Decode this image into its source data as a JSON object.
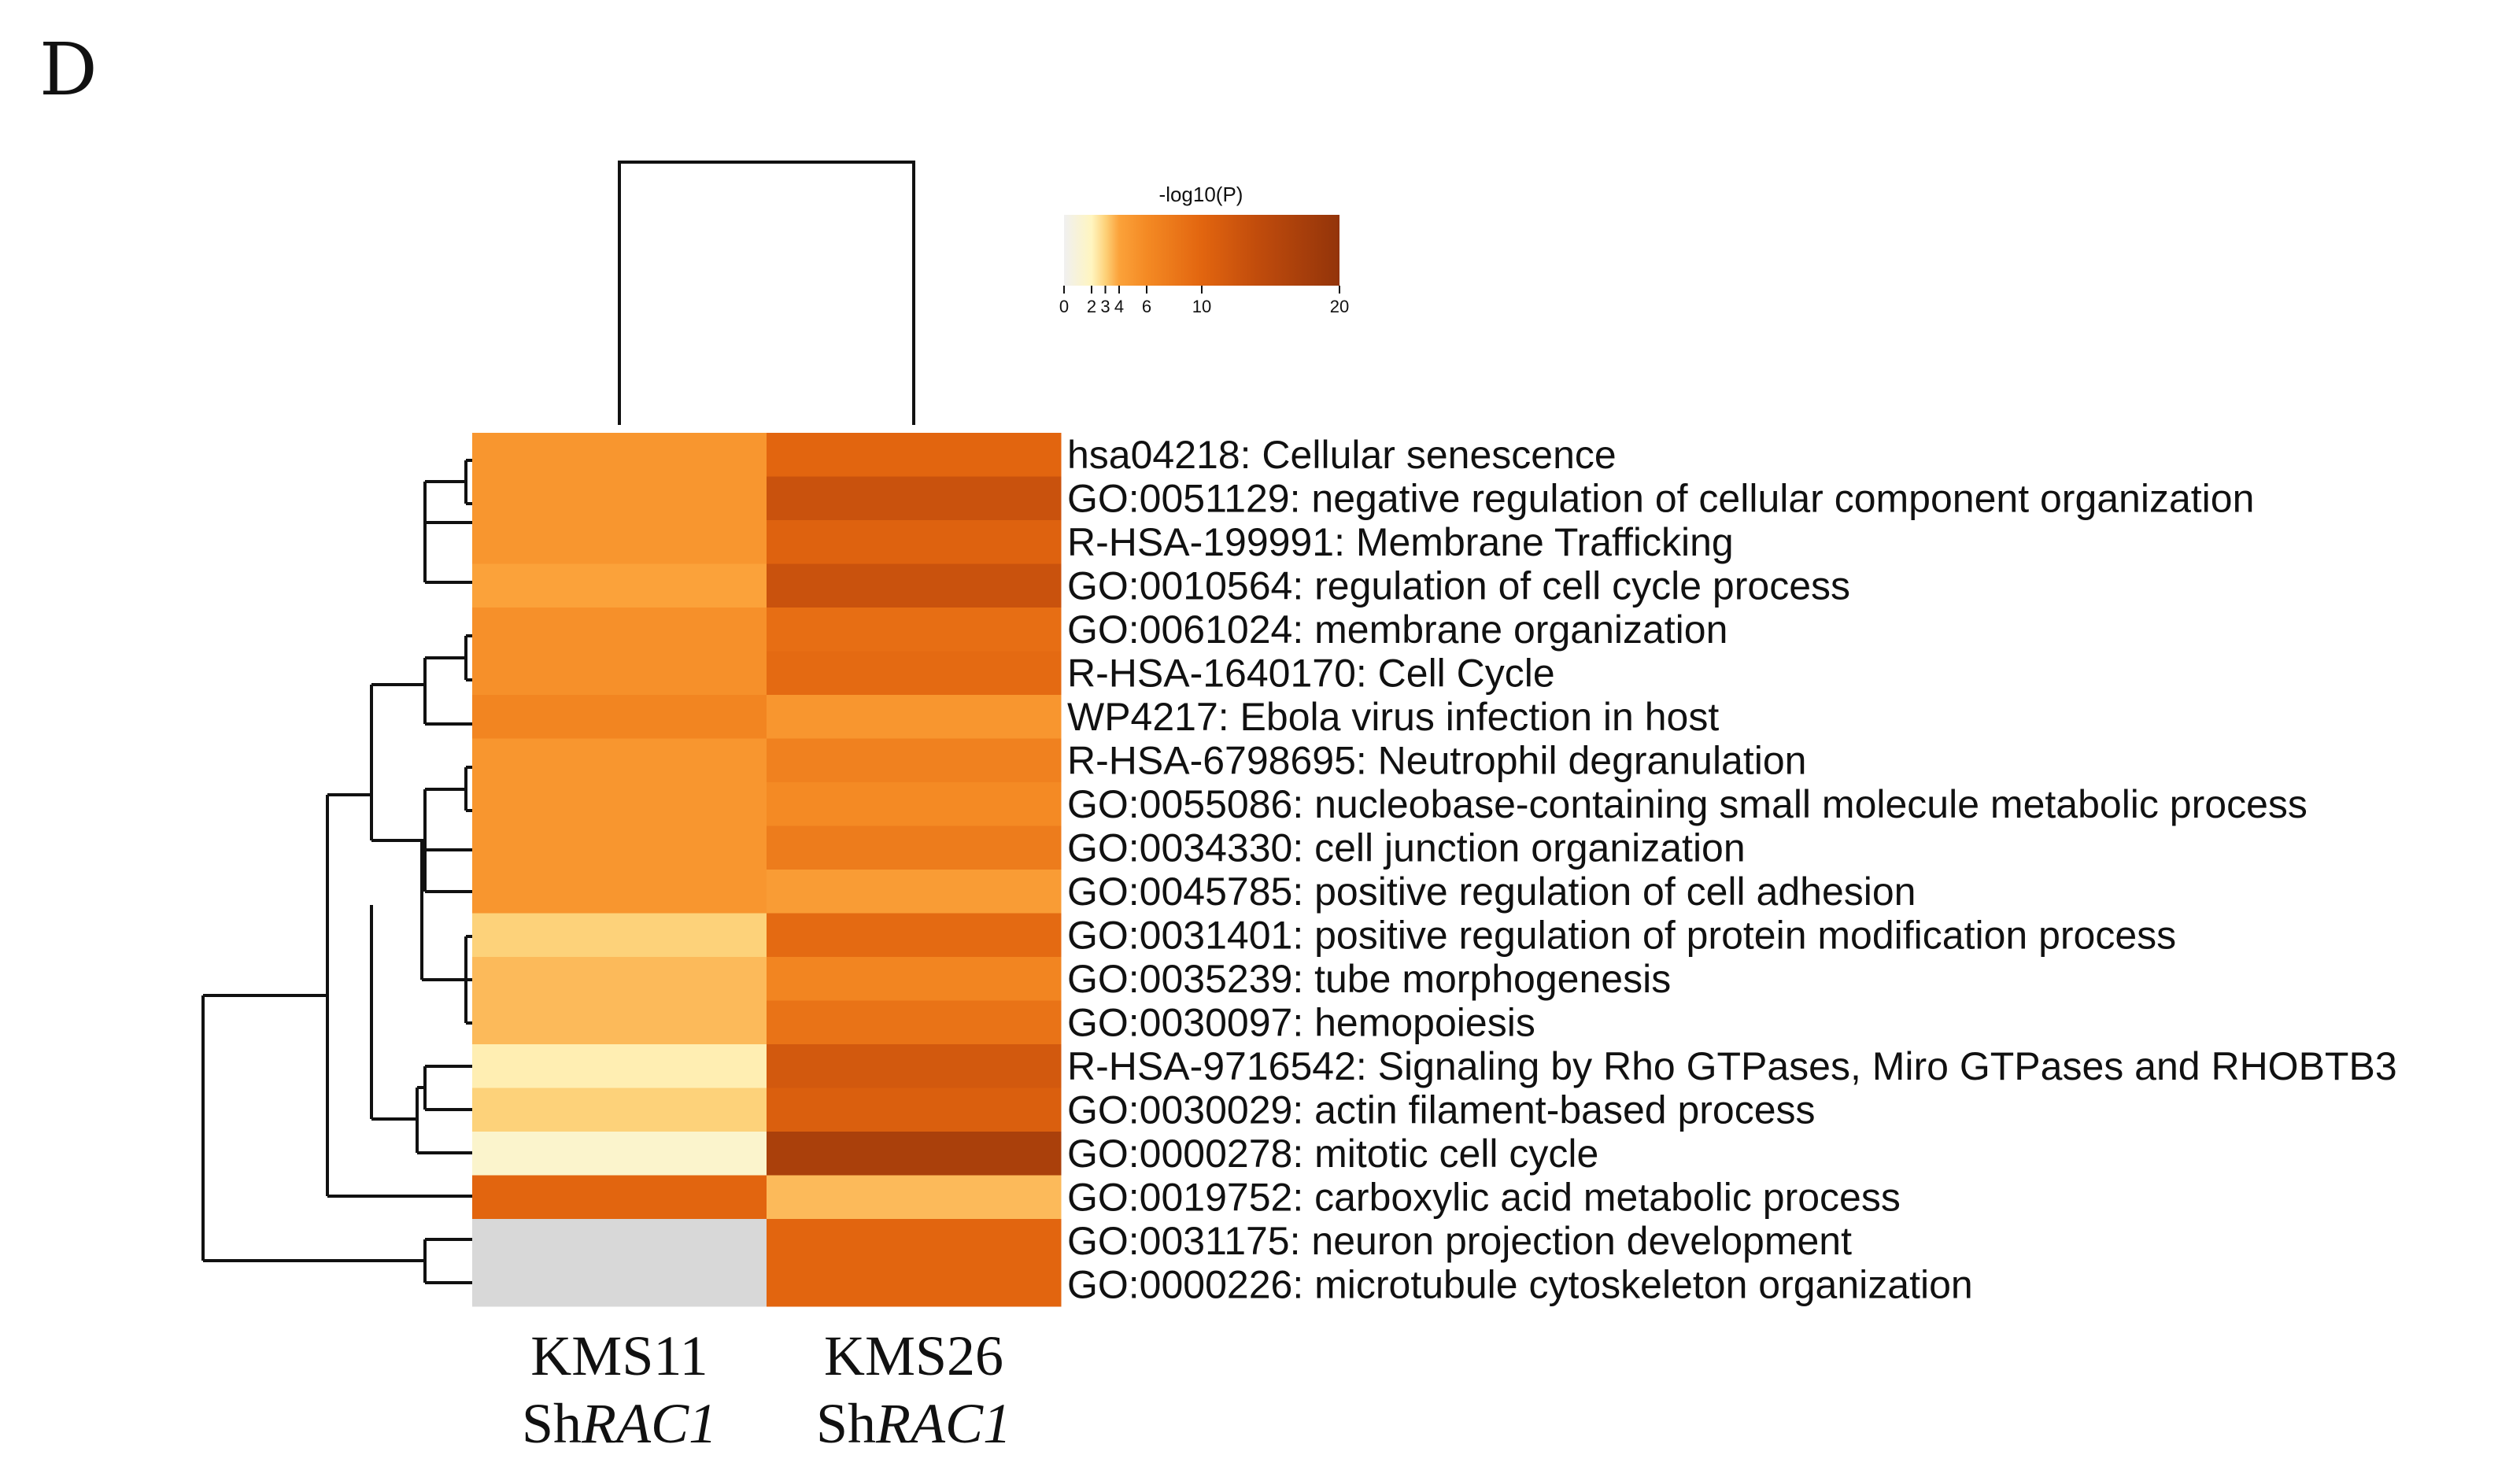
{
  "panel_label": "D",
  "colors": {
    "scale": [
      "#f0f0f0",
      "#fff5c0",
      "#fdd27a",
      "#fba23a",
      "#f48a24",
      "#e2650f",
      "#c14c0c",
      "#93340a"
    ],
    "missing": "#d8d8d8"
  },
  "chart_data": {
    "type": "heatmap",
    "title": "",
    "legend": {
      "title": "-log10(P)",
      "ticks": [
        "0",
        "2",
        "3",
        "4",
        "6",
        "10",
        "20"
      ],
      "tick_values": [
        0,
        2,
        3,
        4,
        6,
        10,
        20
      ],
      "range": [
        0,
        20
      ],
      "placement": "top-center"
    },
    "columns": [
      {
        "name": "KMS11",
        "prefix": "Sh",
        "gene": "RAC1"
      },
      {
        "name": "KMS26",
        "prefix": "Sh",
        "gene": "RAC1"
      }
    ],
    "rows": [
      "hsa04218: Cellular senescence",
      "GO:0051129: negative regulation of cellular component organization",
      "R-HSA-199991: Membrane Trafficking",
      "GO:0010564: regulation of cell cycle process",
      "GO:0061024: membrane organization",
      "R-HSA-1640170: Cell Cycle",
      "WP4217: Ebola virus infection in host",
      "R-HSA-6798695: Neutrophil degranulation",
      "GO:0055086: nucleobase-containing small molecule metabolic process",
      "GO:0034330: cell junction organization",
      "GO:0045785: positive regulation of cell adhesion",
      "GO:0031401: positive regulation of protein modification process",
      "GO:0035239: tube morphogenesis",
      "GO:0030097: hemopoiesis",
      "R-HSA-9716542: Signaling by Rho GTPases, Miro GTPases and RHOBTB3",
      "GO:0030029: actin filament-based process",
      "GO:0000278: mitotic cell cycle",
      "GO:0019752: carboxylic acid metabolic process",
      "GO:0031175: neuron projection development",
      "GO:0000226: microtubule cytoskeleton organization"
    ],
    "values": [
      [
        5.0,
        10.0
      ],
      [
        5.0,
        13.0
      ],
      [
        5.0,
        10.5
      ],
      [
        4.0,
        13.0
      ],
      [
        5.5,
        9.0
      ],
      [
        5.5,
        9.5
      ],
      [
        6.5,
        5.0
      ],
      [
        5.0,
        7.0
      ],
      [
        5.0,
        6.0
      ],
      [
        5.0,
        7.5
      ],
      [
        5.0,
        4.5
      ],
      [
        3.0,
        9.5
      ],
      [
        3.5,
        6.5
      ],
      [
        3.5,
        8.5
      ],
      [
        2.2,
        12.0
      ],
      [
        3.0,
        11.0
      ],
      [
        1.5,
        17.0
      ],
      [
        10.0,
        3.5
      ],
      [
        null,
        10.0
      ],
      [
        null,
        10.0
      ]
    ]
  }
}
